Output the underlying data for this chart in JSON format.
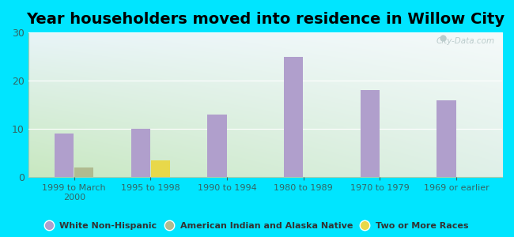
{
  "title": "Year householders moved into residence in Willow City",
  "categories": [
    "1999 to March\n2000",
    "1995 to 1998",
    "1990 to 1994",
    "1980 to 1989",
    "1970 to 1979",
    "1969 or earlier"
  ],
  "white_non_hispanic": [
    9,
    10,
    13,
    25,
    18,
    16
  ],
  "american_indian": [
    2,
    0,
    0,
    0,
    0,
    0
  ],
  "two_or_more": [
    0,
    3.5,
    0,
    0,
    0,
    0
  ],
  "bar_color_white": "#b09fcc",
  "bar_color_indian": "#b0bb90",
  "bar_color_two": "#e8d84a",
  "background_outer": "#00e5ff",
  "background_plot_topleft": "#ddf0e8",
  "background_plot_topright": "#f0f8fa",
  "background_plot_bottomleft": "#c8e8c0",
  "background_plot_bottomright": "#e8f4f0",
  "ylim": [
    0,
    30
  ],
  "yticks": [
    0,
    10,
    20,
    30
  ],
  "legend_labels": [
    "White Non-Hispanic",
    "American Indian and Alaska Native",
    "Two or More Races"
  ],
  "watermark": "City-Data.com",
  "title_fontsize": 14,
  "bar_width": 0.25
}
